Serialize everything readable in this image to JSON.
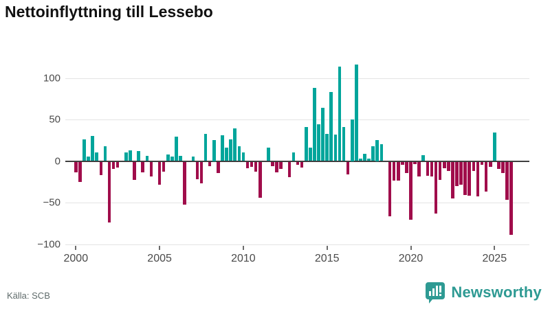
{
  "title": "Nettoinflyttning till Lessebo",
  "source": "Källa: SCB",
  "branding": {
    "name": "Newsworthy"
  },
  "colors": {
    "positive": "#00A59B",
    "negative": "#A00D4B",
    "brand": "#2E9A93",
    "axis": "#3f3f3f",
    "grid": "#e3e3e3",
    "tick_text": "#4a4a4a"
  },
  "chart_data": {
    "type": "bar",
    "title": "Nettoinflyttning till Lessebo",
    "x_freq": "quarterly",
    "x_start": "2000-Q1",
    "x_end": "2026-Q1",
    "start_year": 2000,
    "x_tick_labels": [
      "2000",
      "2005",
      "2010",
      "2015",
      "2020",
      "2025"
    ],
    "y_tick_labels": [
      "100",
      "50",
      "0",
      "−50",
      "−100"
    ],
    "y_ticks": [
      100,
      50,
      0,
      -50,
      -100
    ],
    "ylim": [
      -100,
      120
    ],
    "grid": true,
    "legend": false,
    "values": [
      -13,
      -24,
      26,
      5,
      30,
      10,
      -16,
      18,
      -73,
      -9,
      -7,
      0,
      10,
      13,
      -22,
      12,
      -13,
      6,
      -18,
      0,
      -28,
      -12,
      8,
      5,
      29,
      6,
      -52,
      0,
      5,
      -21,
      -26,
      33,
      -5,
      25,
      -14,
      31,
      16,
      26,
      39,
      18,
      10,
      -8,
      -6,
      -12,
      -43,
      0,
      16,
      -5,
      -13,
      -9,
      0,
      -19,
      10,
      -4,
      -7,
      41,
      16,
      88,
      44,
      64,
      33,
      83,
      32,
      114,
      41,
      -15,
      50,
      116,
      3,
      9,
      3,
      18,
      25,
      20,
      0,
      -66,
      -23,
      -23,
      -4,
      -14,
      -70,
      -3,
      -18,
      7,
      -17,
      -18,
      -62,
      -22,
      -8,
      -11,
      -44,
      -29,
      -28,
      -40,
      -41,
      -11,
      -42,
      -4,
      -36,
      -6,
      34,
      -9,
      -14,
      -46,
      -88
    ]
  }
}
